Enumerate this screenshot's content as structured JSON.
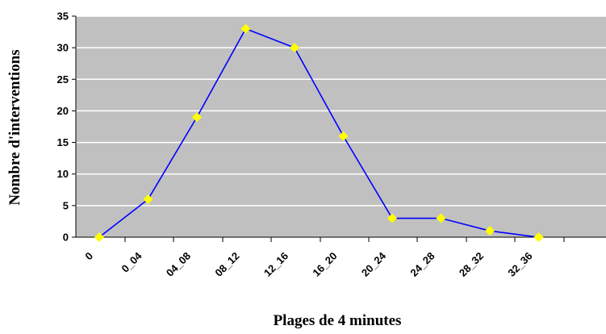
{
  "chart_data": {
    "type": "line",
    "title": "",
    "xlabel": "Plages de 4 minutes",
    "ylabel": "Nombre d'interventions",
    "categories": [
      "0",
      "0_04",
      "04_08",
      "08_12",
      "12_16",
      "16_20",
      "20_24",
      "24_28",
      "28_32",
      "32_36"
    ],
    "series": [
      {
        "values": [
          0,
          6,
          19,
          33,
          30,
          16,
          3,
          3,
          1,
          0
        ]
      }
    ],
    "ylim": [
      0,
      35
    ],
    "yticks": [
      "0",
      "5",
      "10",
      "15",
      "20",
      "25",
      "30",
      "35"
    ],
    "grid": true,
    "legend": "none",
    "colors": {
      "plot_background": "#c0c0c0",
      "gridline": "#ffffff",
      "line": "#0000ff",
      "marker": "#ffff00"
    },
    "marker": "diamond"
  }
}
